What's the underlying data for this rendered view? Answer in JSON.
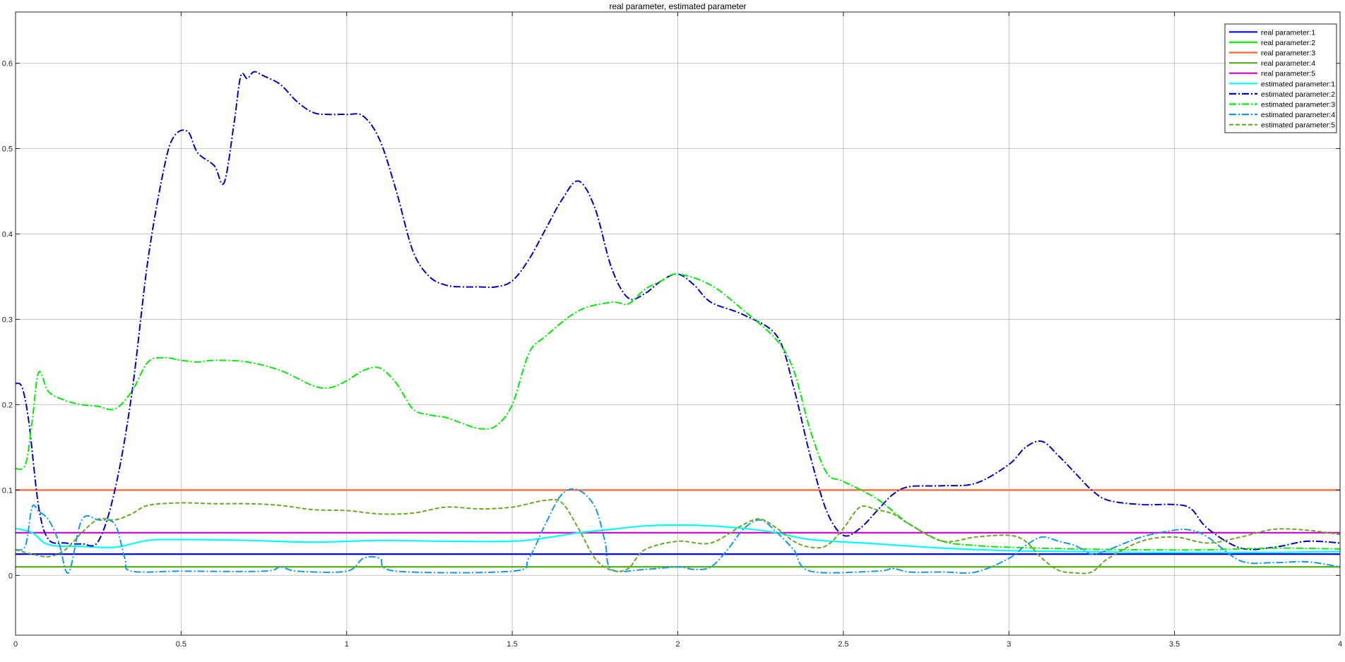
{
  "chart_data": {
    "type": "line",
    "title": "real parameter, estimated parameter",
    "xlabel": "",
    "ylabel": "",
    "xlim": [
      0,
      4
    ],
    "ylim": [
      -0.07,
      0.66
    ],
    "xticks": [
      0,
      0.5,
      1,
      1.5,
      2,
      2.5,
      3,
      3.5,
      4
    ],
    "xtick_labels": [
      "0",
      "0.5",
      "1",
      "1.5",
      "2",
      "2.5",
      "3",
      "3.5",
      "4"
    ],
    "yticks": [
      0,
      0.1,
      0.2,
      0.3,
      0.4,
      0.5,
      0.6
    ],
    "ytick_labels": [
      "0",
      "0.1",
      "0.2",
      "0.3",
      "0.4",
      "0.5",
      "0.6"
    ],
    "grid": true,
    "legend_position": "top-right",
    "series": [
      {
        "name": "real parameter:1",
        "color": "#0000ff",
        "dash": "solid",
        "x": [
          0,
          4
        ],
        "y": [
          0.025,
          0.025
        ]
      },
      {
        "name": "real parameter:2",
        "color": "#00ff00",
        "dash": "solid",
        "x": [
          0,
          4
        ],
        "y": [
          0.01,
          0.01
        ]
      },
      {
        "name": "real parameter:3",
        "color": "#ff6633",
        "dash": "solid",
        "x": [
          0,
          4
        ],
        "y": [
          0.1,
          0.1
        ]
      },
      {
        "name": "real parameter:4",
        "color": "#66aa22",
        "dash": "solid",
        "x": [
          0,
          4
        ],
        "y": [
          0.01,
          0.01
        ]
      },
      {
        "name": "real parameter:5",
        "color": "#cc00cc",
        "dash": "solid",
        "x": [
          0,
          4
        ],
        "y": [
          0.05,
          0.05
        ]
      },
      {
        "name": "estimated parameter:1",
        "color": "#00ffff",
        "dash": "solid",
        "x": [
          0,
          0.05,
          0.1,
          0.2,
          0.3,
          0.4,
          0.5,
          0.7,
          0.9,
          1.1,
          1.3,
          1.5,
          1.6,
          1.7,
          1.8,
          1.9,
          2.0,
          2.1,
          2.2,
          2.3,
          2.4,
          2.6,
          2.8,
          3.0,
          3.2,
          3.4,
          3.6,
          3.8,
          4.0
        ],
        "y": [
          0.055,
          0.05,
          0.036,
          0.034,
          0.033,
          0.041,
          0.042,
          0.041,
          0.039,
          0.041,
          0.04,
          0.04,
          0.044,
          0.05,
          0.054,
          0.058,
          0.059,
          0.058,
          0.055,
          0.05,
          0.042,
          0.037,
          0.032,
          0.029,
          0.028,
          0.027,
          0.027,
          0.027,
          0.028
        ]
      },
      {
        "name": "estimated parameter:2",
        "color": "#0000cc",
        "dash": "dashdot",
        "x": [
          0,
          0.02,
          0.04,
          0.07,
          0.1,
          0.15,
          0.2,
          0.25,
          0.3,
          0.35,
          0.4,
          0.45,
          0.48,
          0.52,
          0.55,
          0.6,
          0.63,
          0.66,
          0.68,
          0.7,
          0.72,
          0.75,
          0.8,
          0.85,
          0.9,
          0.95,
          1.0,
          1.05,
          1.1,
          1.15,
          1.2,
          1.25,
          1.3,
          1.35,
          1.4,
          1.45,
          1.5,
          1.55,
          1.6,
          1.65,
          1.7,
          1.75,
          1.8,
          1.85,
          1.9,
          1.95,
          2.0,
          2.05,
          2.1,
          2.2,
          2.3,
          2.35,
          2.4,
          2.45,
          2.5,
          2.55,
          2.6,
          2.65,
          2.7,
          2.8,
          2.9,
          3.0,
          3.05,
          3.1,
          3.15,
          3.2,
          3.25,
          3.3,
          3.4,
          3.5,
          3.55,
          3.6,
          3.7,
          3.8,
          3.9,
          4.0
        ],
        "y": [
          0.225,
          0.22,
          0.18,
          0.08,
          0.042,
          0.038,
          0.037,
          0.04,
          0.1,
          0.21,
          0.37,
          0.48,
          0.515,
          0.52,
          0.495,
          0.48,
          0.46,
          0.53,
          0.585,
          0.582,
          0.59,
          0.585,
          0.575,
          0.555,
          0.542,
          0.54,
          0.54,
          0.538,
          0.51,
          0.45,
          0.38,
          0.35,
          0.34,
          0.338,
          0.338,
          0.338,
          0.345,
          0.37,
          0.405,
          0.44,
          0.462,
          0.43,
          0.36,
          0.325,
          0.33,
          0.345,
          0.353,
          0.34,
          0.32,
          0.305,
          0.28,
          0.22,
          0.14,
          0.075,
          0.047,
          0.055,
          0.075,
          0.095,
          0.104,
          0.105,
          0.108,
          0.13,
          0.15,
          0.157,
          0.14,
          0.12,
          0.1,
          0.088,
          0.083,
          0.083,
          0.078,
          0.055,
          0.032,
          0.033,
          0.04,
          0.038
        ]
      },
      {
        "name": "estimated parameter:3",
        "color": "#00ee00",
        "dash": "dashdot",
        "x": [
          0,
          0.03,
          0.05,
          0.07,
          0.1,
          0.15,
          0.2,
          0.25,
          0.3,
          0.35,
          0.4,
          0.45,
          0.5,
          0.55,
          0.6,
          0.7,
          0.8,
          0.9,
          0.95,
          1.0,
          1.05,
          1.1,
          1.15,
          1.2,
          1.25,
          1.3,
          1.35,
          1.4,
          1.45,
          1.5,
          1.55,
          1.6,
          1.7,
          1.8,
          1.85,
          1.9,
          1.95,
          2.0,
          2.1,
          2.2,
          2.3,
          2.35,
          2.4,
          2.45,
          2.5,
          2.6,
          2.7,
          2.8,
          2.9,
          3.0,
          3.2,
          3.4,
          3.6,
          3.8,
          4.0
        ],
        "y": [
          0.125,
          0.13,
          0.18,
          0.238,
          0.215,
          0.205,
          0.2,
          0.198,
          0.195,
          0.215,
          0.25,
          0.255,
          0.252,
          0.25,
          0.252,
          0.25,
          0.24,
          0.222,
          0.22,
          0.228,
          0.24,
          0.243,
          0.225,
          0.195,
          0.188,
          0.185,
          0.178,
          0.172,
          0.175,
          0.2,
          0.26,
          0.28,
          0.31,
          0.32,
          0.318,
          0.335,
          0.345,
          0.353,
          0.34,
          0.31,
          0.275,
          0.24,
          0.17,
          0.12,
          0.11,
          0.09,
          0.06,
          0.04,
          0.035,
          0.033,
          0.031,
          0.03,
          0.03,
          0.032,
          0.031
        ]
      },
      {
        "name": "estimated parameter:4",
        "color": "#1199ee",
        "dash": "dashdot",
        "x": [
          0,
          0.03,
          0.05,
          0.07,
          0.1,
          0.13,
          0.16,
          0.2,
          0.25,
          0.3,
          0.33,
          0.35,
          0.5,
          0.75,
          0.8,
          0.85,
          1.0,
          1.05,
          1.1,
          1.15,
          1.5,
          1.55,
          1.6,
          1.65,
          1.7,
          1.75,
          1.78,
          1.8,
          1.9,
          2.0,
          2.05,
          2.1,
          2.15,
          2.2,
          2.25,
          2.3,
          2.35,
          2.4,
          2.6,
          2.65,
          2.7,
          2.8,
          2.9,
          3.0,
          3.05,
          3.1,
          3.15,
          3.2,
          3.25,
          3.3,
          3.4,
          3.5,
          3.55,
          3.6,
          3.7,
          3.8,
          3.9,
          4.0
        ],
        "y": [
          0.03,
          0.035,
          0.08,
          0.075,
          0.065,
          0.04,
          0.003,
          0.065,
          0.065,
          0.06,
          0.02,
          0.005,
          0.005,
          0.005,
          0.01,
          0.005,
          0.005,
          0.02,
          0.02,
          0.005,
          0.005,
          0.02,
          0.06,
          0.095,
          0.1,
          0.08,
          0.04,
          0.007,
          0.007,
          0.01,
          0.007,
          0.01,
          0.03,
          0.055,
          0.065,
          0.05,
          0.03,
          0.005,
          0.005,
          0.008,
          0.004,
          0.004,
          0.004,
          0.02,
          0.035,
          0.045,
          0.04,
          0.035,
          0.025,
          0.03,
          0.045,
          0.053,
          0.053,
          0.045,
          0.017,
          0.015,
          0.016,
          0.01
        ]
      },
      {
        "name": "estimated parameter:5",
        "color": "#66aa22",
        "dash": "dashed",
        "x": [
          0,
          0.05,
          0.1,
          0.15,
          0.2,
          0.25,
          0.3,
          0.35,
          0.4,
          0.5,
          0.6,
          0.7,
          0.8,
          0.9,
          1.0,
          1.1,
          1.2,
          1.3,
          1.4,
          1.5,
          1.6,
          1.65,
          1.7,
          1.75,
          1.8,
          1.85,
          1.9,
          2.0,
          2.1,
          2.2,
          2.25,
          2.3,
          2.35,
          2.4,
          2.45,
          2.5,
          2.55,
          2.6,
          2.65,
          2.7,
          2.8,
          2.9,
          3.0,
          3.05,
          3.1,
          3.15,
          3.2,
          3.25,
          3.3,
          3.4,
          3.5,
          3.6,
          3.7,
          3.8,
          3.9,
          4.0
        ],
        "y": [
          0.03,
          0.025,
          0.022,
          0.03,
          0.05,
          0.066,
          0.065,
          0.072,
          0.082,
          0.085,
          0.084,
          0.084,
          0.082,
          0.077,
          0.076,
          0.072,
          0.073,
          0.08,
          0.078,
          0.08,
          0.088,
          0.085,
          0.055,
          0.02,
          0.006,
          0.008,
          0.03,
          0.04,
          0.038,
          0.06,
          0.066,
          0.055,
          0.04,
          0.033,
          0.035,
          0.055,
          0.08,
          0.077,
          0.072,
          0.06,
          0.04,
          0.045,
          0.047,
          0.04,
          0.02,
          0.006,
          0.003,
          0.004,
          0.02,
          0.04,
          0.045,
          0.038,
          0.045,
          0.054,
          0.053,
          0.048
        ]
      }
    ]
  }
}
